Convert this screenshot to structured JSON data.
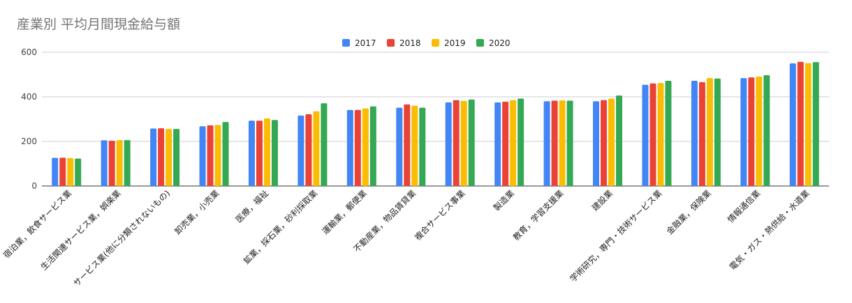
{
  "chart_data": {
    "type": "bar",
    "title": "産業別 平均月間現金給与額",
    "categories": [
      "宿泊業，飲食サービス業",
      "生活関連サービス業，娯楽業",
      "サービス業(他に分類されないもの)",
      "卸売業，小売業",
      "医療，福祉",
      "鉱業，採石業，砂利採取業",
      "運輸業，郵便業",
      "不動産業，物品賃貸業",
      "複合サービス事業",
      "製造業",
      "教育，学習支援業",
      "建設業",
      "学術研究，専門・技術サービス業",
      "金融業，保険業",
      "情報通信業",
      "電気・ガス・熱供給・水道業"
    ],
    "series": [
      {
        "name": "2017",
        "color": "#4285f4",
        "values": [
          126,
          205,
          258,
          268,
          293,
          316,
          341,
          351,
          375,
          375,
          380,
          380,
          454,
          472,
          484,
          550
        ]
      },
      {
        "name": "2018",
        "color": "#ea4335",
        "values": [
          127,
          203,
          259,
          272,
          293,
          322,
          341,
          366,
          385,
          378,
          383,
          385,
          460,
          466,
          487,
          557
        ]
      },
      {
        "name": "2019",
        "color": "#fbbc04",
        "values": [
          125,
          206,
          256,
          274,
          303,
          335,
          348,
          360,
          382,
          385,
          384,
          392,
          462,
          484,
          491,
          551
        ]
      },
      {
        "name": "2020",
        "color": "#34a853",
        "values": [
          123,
          206,
          256,
          287,
          296,
          371,
          357,
          351,
          388,
          392,
          383,
          406,
          472,
          482,
          497,
          556
        ]
      }
    ],
    "yticks": [
      "0",
      "200",
      "400",
      "600"
    ],
    "ylim": [
      0,
      600
    ],
    "grid": true,
    "legend_position": "top-center"
  }
}
